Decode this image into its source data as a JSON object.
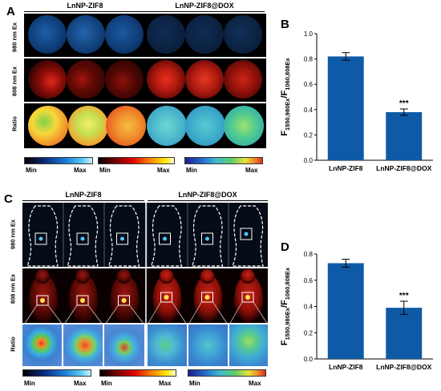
{
  "panel_labels": {
    "a": "A",
    "b": "B",
    "c": "C",
    "d": "D"
  },
  "panel_a": {
    "group1": "LnNP-ZIF8",
    "group2": "LnNP-ZIF8@DOX",
    "rows": [
      "980 nm Ex",
      "808 nm Ex",
      "Ratio"
    ],
    "colorbar_labels": [
      {
        "min": "Min",
        "max": "Max"
      },
      {
        "min": "Min",
        "max": "Max"
      },
      {
        "min": "Min",
        "max": "Max"
      }
    ]
  },
  "panel_c": {
    "group1": "LnNP-ZIF8",
    "group2": "LnNP-ZIF8@DOX",
    "rows": [
      "980 nm Ex",
      "808 nm Ex",
      "Ratio"
    ],
    "colorbar_labels": [
      {
        "min": "Min",
        "max": "Max"
      },
      {
        "min": "Min",
        "max": "Max"
      },
      {
        "min": "Min",
        "max": "Max"
      }
    ]
  },
  "colors": {
    "bar": "#0f5aa6",
    "strip_bg": "#000000"
  },
  "chart_data": [
    {
      "type": "bar",
      "panel": "B",
      "categories": [
        "LnNP-ZIF8",
        "LnNP-ZIF8@DOX"
      ],
      "values": [
        0.82,
        0.38
      ],
      "errors": [
        0.03,
        0.025
      ],
      "significance": [
        "",
        "***"
      ],
      "ylabel_main": "F",
      "ylabel_sub1": "1550,980Ex",
      "ylabel_slash": "/F",
      "ylabel_sub2": "1060,808Ex",
      "ylim": [
        0.0,
        1.0
      ],
      "yticks": [
        "0.0",
        "0.2",
        "0.4",
        "0.6",
        "0.8",
        "1.0"
      ]
    },
    {
      "type": "bar",
      "panel": "D",
      "categories": [
        "LnNP-ZIF8",
        "LnNP-ZIF8@DOX"
      ],
      "values": [
        0.73,
        0.39
      ],
      "errors": [
        0.03,
        0.05
      ],
      "significance": [
        "",
        "***"
      ],
      "ylabel_main": "F",
      "ylabel_sub1": "1550,980Ex",
      "ylabel_slash": "/F",
      "ylabel_sub2": "1060,808Ex",
      "ylim": [
        0.0,
        0.8
      ],
      "yticks": [
        "0.0",
        "0.2",
        "0.4",
        "0.6",
        "0.8"
      ]
    }
  ]
}
